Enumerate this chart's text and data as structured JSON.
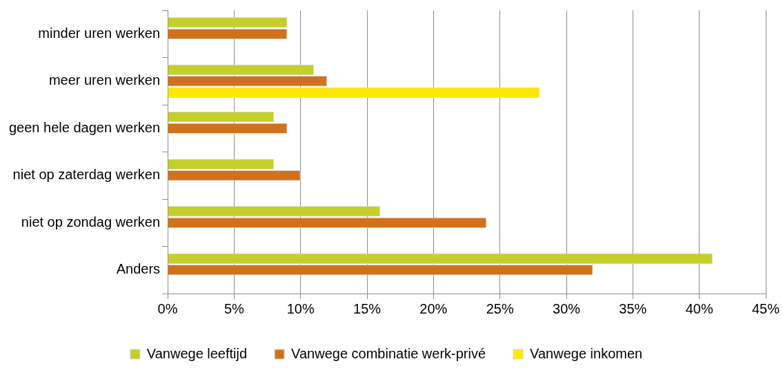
{
  "chart_data": {
    "type": "bar",
    "orientation": "horizontal",
    "categories": [
      "minder uren werken",
      "meer uren werken",
      "geen hele dagen werken",
      "niet op zaterdag werken",
      "niet op zondag werken",
      "Anders"
    ],
    "series": [
      {
        "name": "Vanwege leeftijd",
        "color": "#c4cf2a",
        "values": [
          9,
          11,
          8,
          8,
          16,
          41
        ]
      },
      {
        "name": "Vanwege combinatie werk-privé",
        "color": "#d2711c",
        "values": [
          9,
          12,
          9,
          10,
          24,
          32
        ]
      },
      {
        "name": "Vanwege inkomen",
        "color": "#fde700",
        "values": [
          null,
          28,
          null,
          null,
          null,
          null
        ]
      }
    ],
    "xlim": [
      0,
      45
    ],
    "xticks": [
      {
        "value": 0,
        "label": "0%"
      },
      {
        "value": 5,
        "label": "5%"
      },
      {
        "value": 10,
        "label": "10%"
      },
      {
        "value": 15,
        "label": "15%"
      },
      {
        "value": 20,
        "label": "20%"
      },
      {
        "value": 25,
        "label": "25%"
      },
      {
        "value": 30,
        "label": "30%"
      },
      {
        "value": 35,
        "label": "35%"
      },
      {
        "value": 40,
        "label": "40%"
      },
      {
        "value": 45,
        "label": "45%"
      }
    ],
    "grid": "x",
    "legend": "bottom"
  }
}
